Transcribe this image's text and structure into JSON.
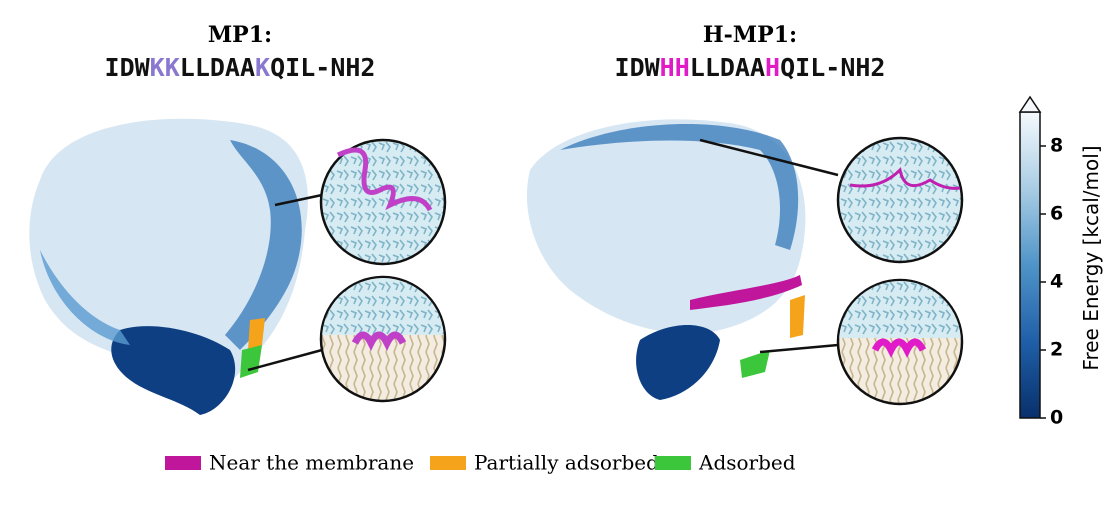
{
  "panels": [
    {
      "title": "MP1:",
      "sequence": [
        {
          "text": "IDW",
          "color": "#111111"
        },
        {
          "text": "KK",
          "color": "#8a78d0"
        },
        {
          "text": "LLDAA",
          "color": "#111111"
        },
        {
          "text": "K",
          "color": "#8a78d0"
        },
        {
          "text": "QIL-NH2",
          "color": "#111111"
        }
      ]
    },
    {
      "title": "H-MP1:",
      "sequence": [
        {
          "text": "IDW",
          "color": "#111111"
        },
        {
          "text": "HH",
          "color": "#e01cc8"
        },
        {
          "text": "LLDAA",
          "color": "#111111"
        },
        {
          "text": "H",
          "color": "#e01cc8"
        },
        {
          "text": "QIL-NH2",
          "color": "#111111"
        }
      ]
    }
  ],
  "colorbar": {
    "label": "Free Energy [kcal/mol]",
    "lim": [
      0,
      9
    ],
    "ticks": [
      0,
      2,
      4,
      6,
      8
    ]
  },
  "legend": [
    {
      "label": "Near the membrane",
      "color": "#c0169c"
    },
    {
      "label": "Partially adsorbed",
      "color": "#f5a31a"
    },
    {
      "label": "Adsorbed",
      "color": "#3cc63c"
    }
  ]
}
